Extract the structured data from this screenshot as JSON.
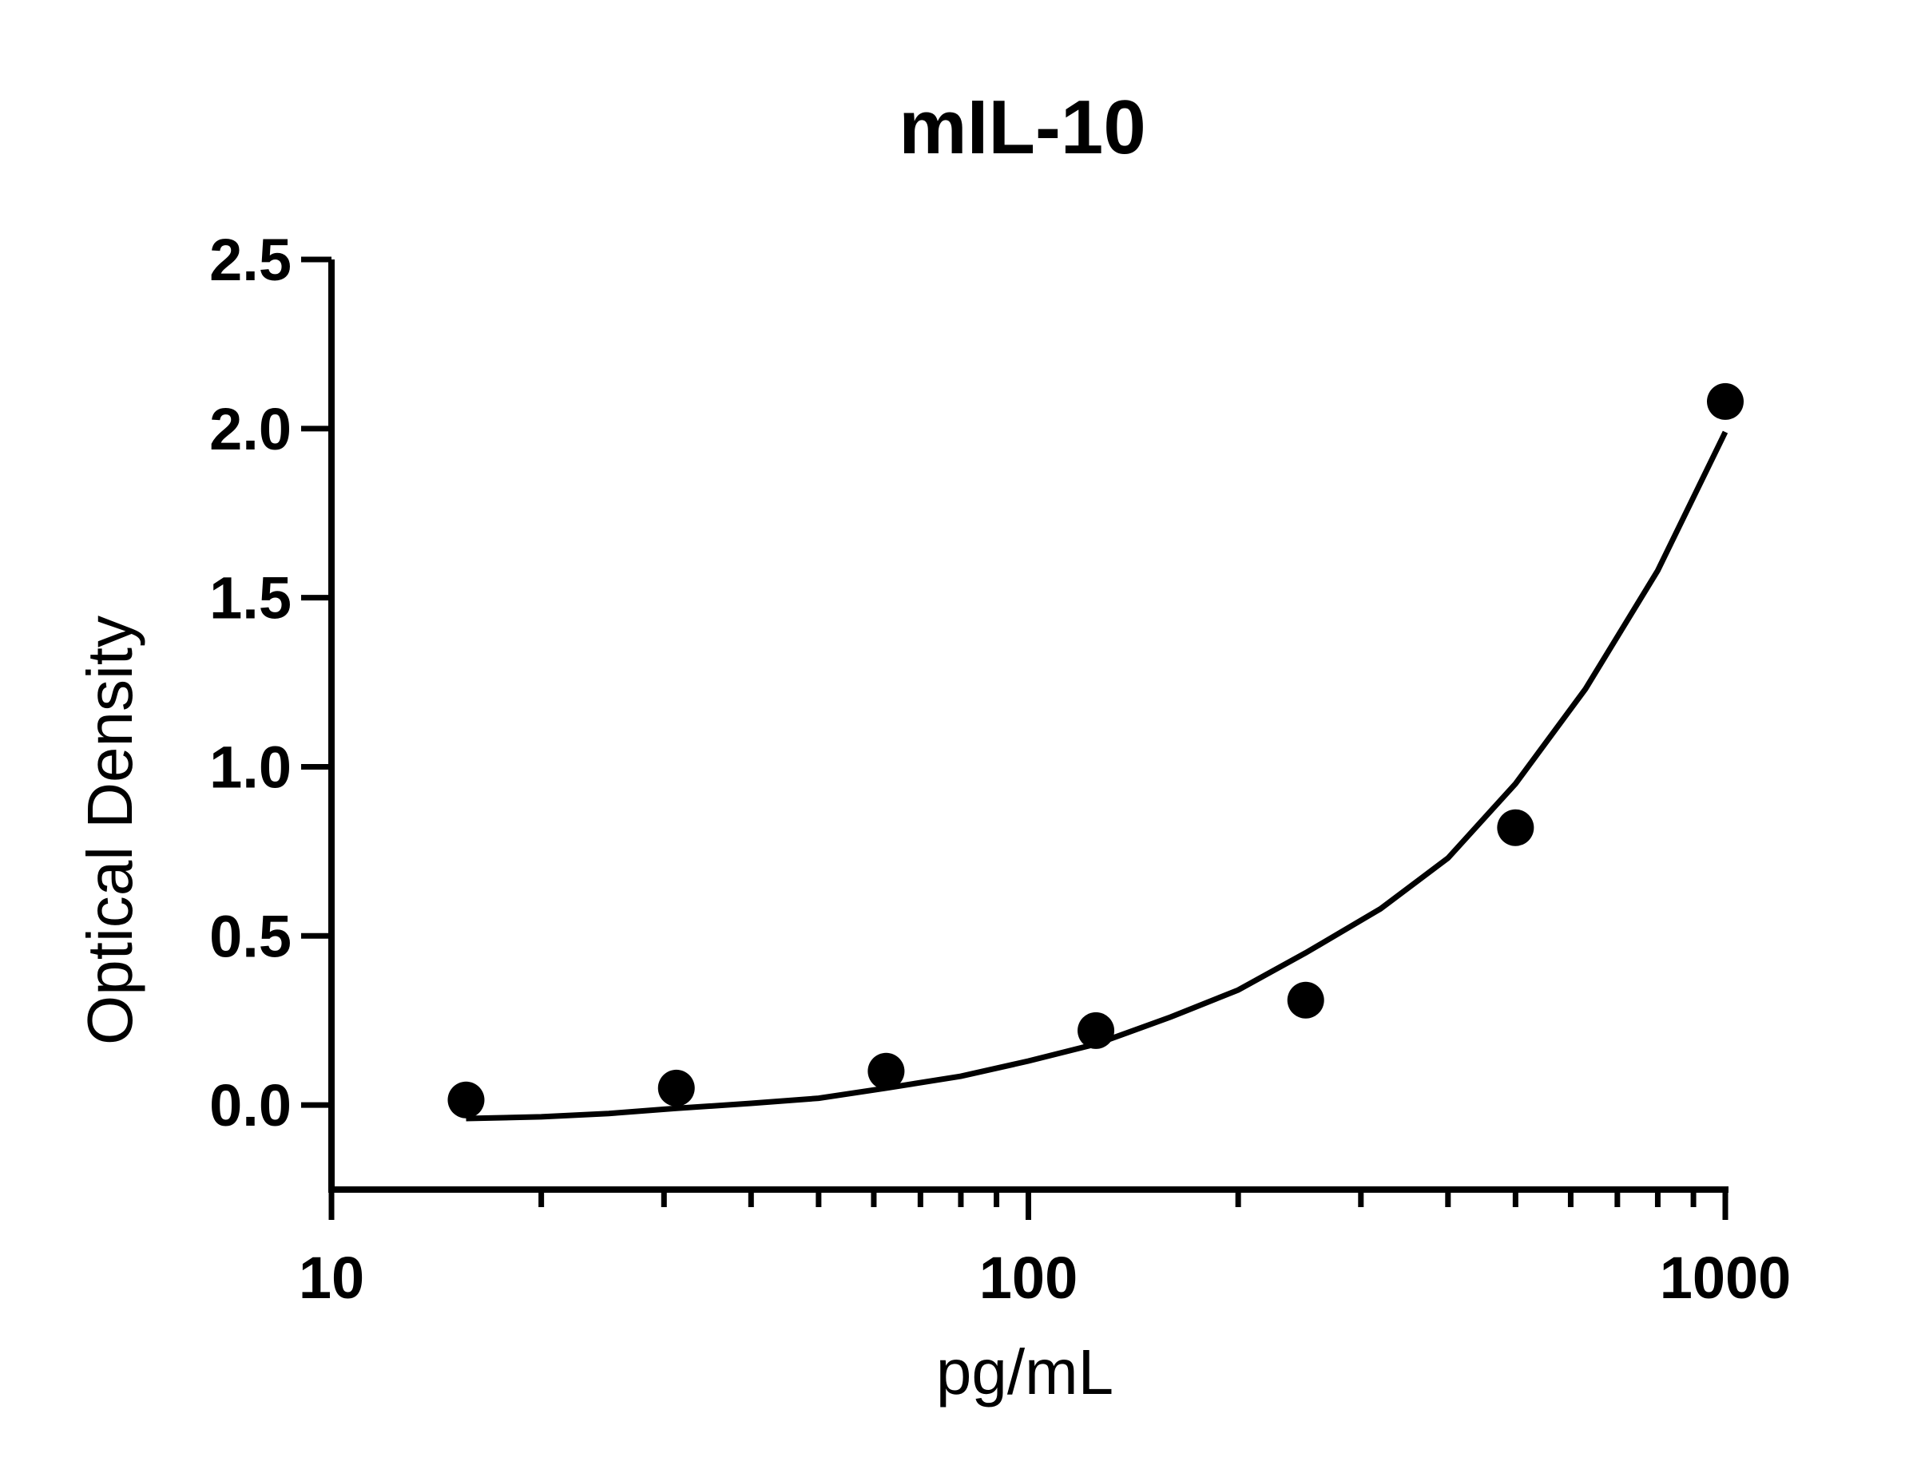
{
  "chart_data": {
    "type": "scatter",
    "title": "mIL-10",
    "xlabel": "pg/mL",
    "ylabel": "Optical Density",
    "xscale": "log",
    "xlim": [
      10,
      1000
    ],
    "ylim": [
      -0.25,
      2.5
    ],
    "x_ticks": [
      10,
      100,
      1000
    ],
    "x_tick_labels": [
      "10",
      "100",
      "1000"
    ],
    "y_ticks": [
      0.0,
      0.5,
      1.0,
      1.5,
      2.0,
      2.5
    ],
    "y_tick_labels": [
      "0.0",
      "0.5",
      "1.0",
      "1.5",
      "2.0",
      "2.5"
    ],
    "grid": false,
    "series": [
      {
        "x": [
          15.6,
          31.25,
          62.5,
          125,
          250,
          500,
          1000
        ],
        "y": [
          0.015,
          0.05,
          0.1,
          0.22,
          0.31,
          0.82,
          2.08
        ]
      }
    ],
    "fit_curve": {
      "x": [
        15.6,
        20,
        25,
        31.25,
        40,
        50,
        62.5,
        80,
        100,
        125,
        160,
        200,
        250,
        320,
        400,
        500,
        630,
        800,
        1000
      ],
      "y": [
        -0.04,
        -0.035,
        -0.025,
        -0.01,
        0.005,
        0.02,
        0.05,
        0.085,
        0.13,
        0.18,
        0.26,
        0.34,
        0.45,
        0.58,
        0.73,
        0.95,
        1.23,
        1.58,
        1.99
      ]
    }
  }
}
